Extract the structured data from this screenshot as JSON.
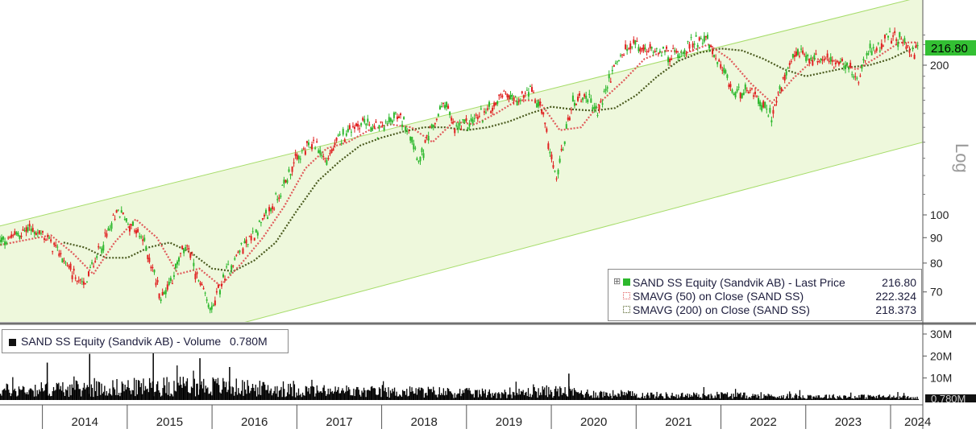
{
  "chart_data": [
    {
      "type": "line",
      "title": "",
      "scale": "log",
      "scale_label": "Log",
      "ylim": [
        60,
        240
      ],
      "y_ticks": [
        {
          "label": "70",
          "value": 70
        },
        {
          "label": "80",
          "value": 80
        },
        {
          "label": "90",
          "value": 90
        },
        {
          "label": "100",
          "value": 100
        },
        {
          "label": "200",
          "value": 200
        }
      ],
      "x_ticks": [
        "2014",
        "2015",
        "2016",
        "2017",
        "2018",
        "2019",
        "2020",
        "2021",
        "2022",
        "2023",
        "2024"
      ],
      "x_range": [
        2013.5,
        2024.38
      ],
      "last_price_badge": "216.80",
      "series": [
        {
          "name": "SAND SS Equity (Sandvik AB) - Last Price",
          "legend_value": "216.80",
          "color": "#2db82d",
          "style": "ohlc-candles",
          "x": [
            2013.5,
            2013.7,
            2013.85,
            2014.05,
            2014.2,
            2014.35,
            2014.5,
            2014.6,
            2014.75,
            2014.9,
            2015.05,
            2015.2,
            2015.3,
            2015.4,
            2015.55,
            2015.7,
            2015.85,
            2016.0,
            2016.1,
            2016.2,
            2016.35,
            2016.5,
            2016.65,
            2016.8,
            2016.95,
            2017.05,
            2017.2,
            2017.35,
            2017.5,
            2017.65,
            2017.8,
            2017.95,
            2018.05,
            2018.15,
            2018.3,
            2018.45,
            2018.6,
            2018.75,
            2018.85,
            2019.0,
            2019.15,
            2019.3,
            2019.45,
            2019.6,
            2019.75,
            2019.9,
            2020.05,
            2020.15,
            2020.25,
            2020.4,
            2020.55,
            2020.7,
            2020.85,
            2021.0,
            2021.1,
            2021.25,
            2021.4,
            2021.55,
            2021.7,
            2021.82,
            2021.95,
            2022.05,
            2022.15,
            2022.3,
            2022.45,
            2022.6,
            2022.75,
            2022.9,
            2023.05,
            2023.2,
            2023.35,
            2023.5,
            2023.62,
            2023.75,
            2023.9,
            2024.05,
            2024.15,
            2024.25,
            2024.32
          ],
          "values": [
            88,
            91,
            94,
            90,
            84,
            76,
            72,
            80,
            90,
            102,
            95,
            88,
            78,
            68,
            76,
            88,
            72,
            64,
            72,
            78,
            86,
            92,
            100,
            110,
            126,
            132,
            140,
            128,
            142,
            150,
            154,
            148,
            152,
            158,
            152,
            128,
            150,
            170,
            148,
            152,
            158,
            165,
            178,
            170,
            178,
            160,
            116,
            140,
            168,
            175,
            160,
            190,
            212,
            222,
            212,
            218,
            208,
            214,
            224,
            228,
            202,
            190,
            175,
            180,
            168,
            158,
            188,
            212,
            205,
            208,
            202,
            198,
            186,
            214,
            222,
            228,
            222,
            210,
            216.8
          ]
        },
        {
          "name": "SMAVG (50) on Close (SAND SS)",
          "legend_value": "222.324",
          "color": "#e05a5a",
          "style": "dotted",
          "x": [
            2013.5,
            2013.8,
            2014.1,
            2014.35,
            2014.6,
            2014.85,
            2015.1,
            2015.35,
            2015.6,
            2015.85,
            2016.1,
            2016.35,
            2016.6,
            2016.85,
            2017.1,
            2017.35,
            2017.6,
            2017.85,
            2018.1,
            2018.35,
            2018.6,
            2018.85,
            2019.1,
            2019.35,
            2019.6,
            2019.85,
            2020.1,
            2020.35,
            2020.6,
            2020.85,
            2021.1,
            2021.35,
            2021.6,
            2021.85,
            2022.1,
            2022.35,
            2022.6,
            2022.85,
            2023.1,
            2023.35,
            2023.6,
            2023.85,
            2024.1,
            2024.32
          ],
          "values": [
            87,
            89,
            91,
            84,
            76,
            88,
            98,
            90,
            76,
            78,
            72,
            80,
            90,
            104,
            124,
            136,
            140,
            148,
            152,
            150,
            140,
            154,
            152,
            160,
            170,
            170,
            148,
            150,
            170,
            186,
            206,
            214,
            212,
            220,
            206,
            184,
            168,
            188,
            206,
            204,
            196,
            208,
            222,
            222.324
          ]
        },
        {
          "name": "SMAVG (200) on Close (SAND SS)",
          "legend_value": "218.373",
          "color": "#4a5a1e",
          "style": "dotted",
          "x": [
            2014.25,
            2014.5,
            2014.75,
            2015.0,
            2015.25,
            2015.5,
            2015.75,
            2016.0,
            2016.25,
            2016.5,
            2016.75,
            2017.0,
            2017.25,
            2017.5,
            2017.75,
            2018.0,
            2018.25,
            2018.5,
            2018.75,
            2019.0,
            2019.25,
            2019.5,
            2019.75,
            2020.0,
            2020.25,
            2020.5,
            2020.75,
            2021.0,
            2021.25,
            2021.5,
            2021.75,
            2022.0,
            2022.25,
            2022.5,
            2022.75,
            2023.0,
            2023.25,
            2023.5,
            2023.75,
            2024.0,
            2024.2,
            2024.32
          ],
          "values": [
            88,
            86,
            82,
            82,
            86,
            88,
            84,
            78,
            77,
            81,
            88,
            102,
            117,
            128,
            138,
            143,
            147,
            150,
            150,
            148,
            150,
            154,
            160,
            165,
            163,
            162,
            164,
            174,
            190,
            204,
            212,
            216,
            214,
            206,
            196,
            190,
            194,
            198,
            200,
            206,
            214,
            218.373
          ]
        }
      ],
      "trend_channel": {
        "color": "#c8ec9c",
        "upper": {
          "x": [
            2013.5,
            2024.38
          ],
          "values": [
            95,
            275
          ]
        },
        "lower": {
          "x": [
            2013.5,
            2024.38
          ],
          "values": [
            45,
            140
          ]
        }
      },
      "legend_placement": "bottom-right"
    },
    {
      "type": "bar",
      "title": "",
      "ylim": [
        0,
        32
      ],
      "y_ticks": [
        {
          "label": "30M",
          "value": 30
        },
        {
          "label": "20M",
          "value": 20
        },
        {
          "label": "10M",
          "value": 10
        }
      ],
      "last_value_badge": "0.780M",
      "series": [
        {
          "name": "SAND SS Equity (Sandvik AB) - Volume",
          "legend_value": "0.780M",
          "color": "#000000",
          "x_range": [
            2013.5,
            2024.32
          ],
          "envelope_x": [
            2013.5,
            2014.0,
            2014.5,
            2015.0,
            2015.5,
            2016.0,
            2016.5,
            2017.0,
            2017.5,
            2018.0,
            2018.5,
            2019.0,
            2019.5,
            2020.0,
            2020.5,
            2021.0,
            2021.5,
            2022.0,
            2022.5,
            2023.0,
            2023.5,
            2024.0,
            2024.32
          ],
          "envelope_values": [
            7.5,
            8.5,
            9.0,
            10.0,
            10.5,
            11.0,
            9.0,
            7.5,
            6.5,
            6.0,
            6.5,
            5.5,
            5.0,
            7.0,
            5.0,
            4.0,
            3.5,
            4.0,
            3.0,
            3.0,
            2.6,
            2.6,
            1.5
          ],
          "spikes": [
            {
              "x": 2014.55,
              "value": 21
            },
            {
              "x": 2015.3,
              "value": 28
            },
            {
              "x": 2015.85,
              "value": 19
            },
            {
              "x": 2014.05,
              "value": 17
            },
            {
              "x": 2016.2,
              "value": 15
            },
            {
              "x": 2020.2,
              "value": 12
            }
          ]
        }
      ],
      "legend_placement": "top-left"
    }
  ]
}
